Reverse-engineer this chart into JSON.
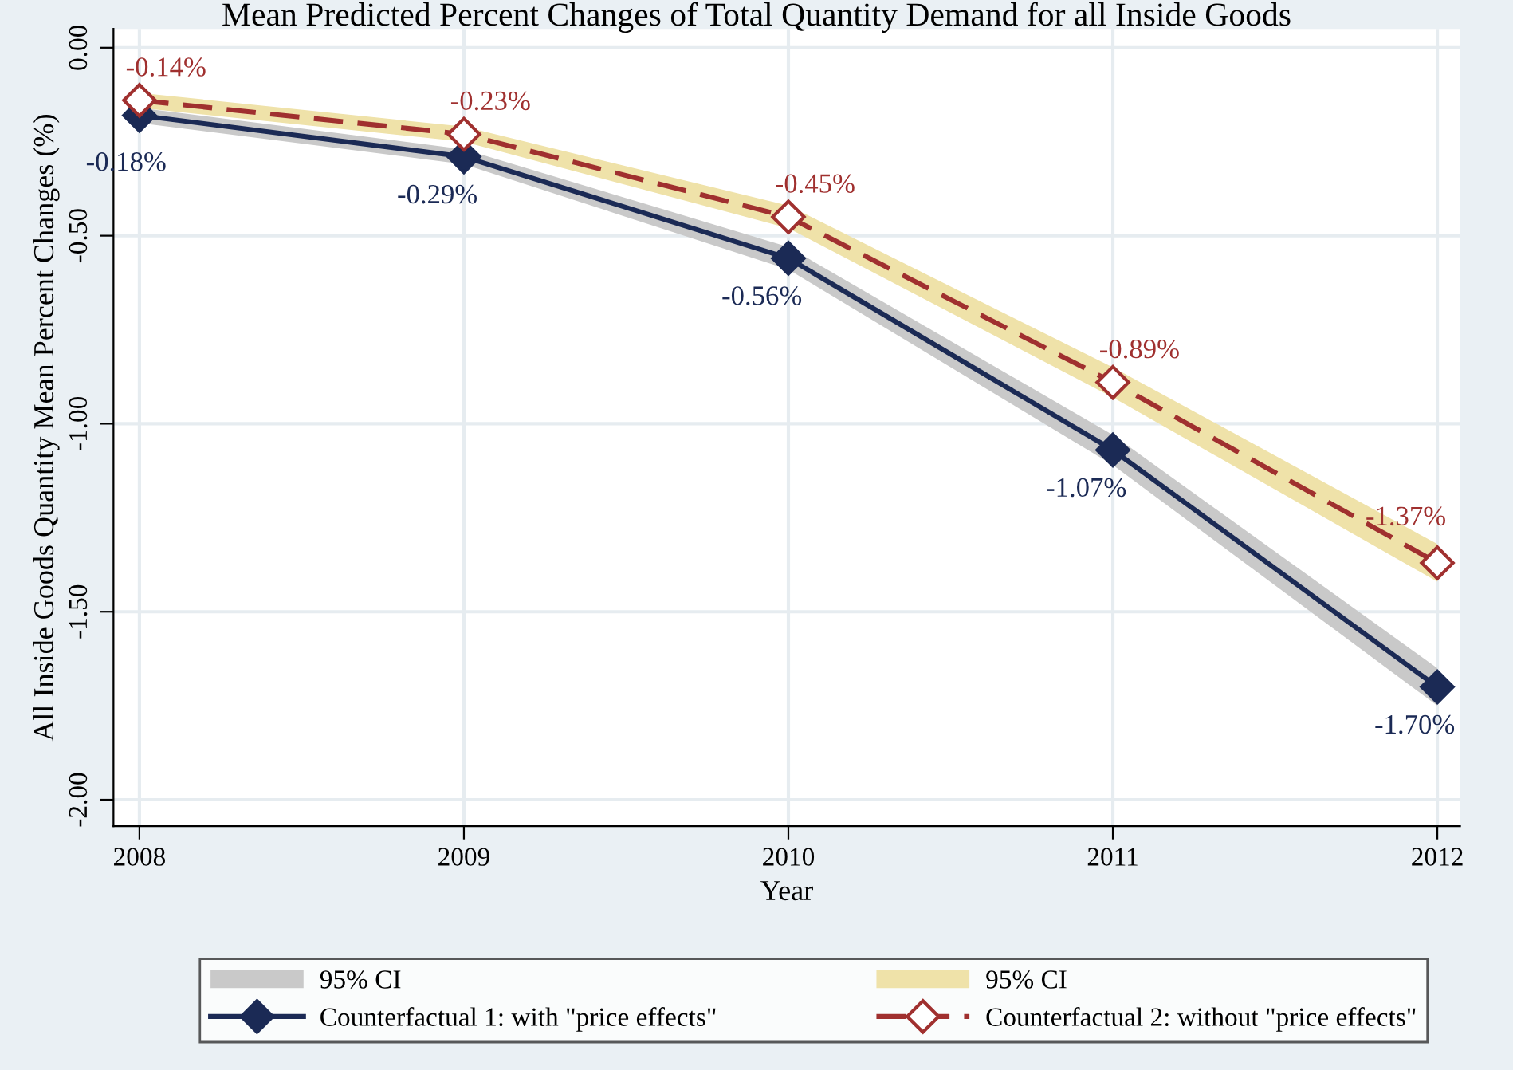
{
  "chart_data": {
    "type": "line",
    "title": "Mean Predicted Percent Changes of Total Quantity Demand for all Inside Goods",
    "xlabel": "Year",
    "ylabel": "All Inside Goods Quantity Mean Percent Changes (%)",
    "x": [
      2008,
      2009,
      2010,
      2011,
      2012
    ],
    "series": [
      {
        "name": "Counterfactual 1: with \"price effects\"",
        "color": "#1b2a55",
        "marker": "diamond",
        "line_style": "solid",
        "values": [
          -0.18,
          -0.29,
          -0.56,
          -1.07,
          -1.7
        ],
        "value_labels": [
          "-0.18%",
          "-0.29%",
          "-0.56%",
          "-1.07%",
          "-1.70%"
        ],
        "lower": [
          -0.2,
          -0.31,
          -0.59,
          -1.11,
          -1.75
        ],
        "upper": [
          -0.16,
          -0.27,
          -0.53,
          -1.03,
          -1.65
        ]
      },
      {
        "name": "Counterfactual 2: without \"price effects\"",
        "color": "#a0302f",
        "marker": "diamond",
        "line_style": "dashed",
        "values": [
          -0.14,
          -0.23,
          -0.45,
          -0.89,
          -1.37
        ],
        "value_labels": [
          "-0.14%",
          "-0.23%",
          "-0.45%",
          "-0.89%",
          "-1.37%"
        ],
        "lower": [
          -0.16,
          -0.25,
          -0.48,
          -0.93,
          -1.42
        ],
        "upper": [
          -0.12,
          -0.21,
          -0.42,
          -0.85,
          -1.32
        ]
      }
    ],
    "annotations": [
      "95% CI",
      "95% CI"
    ],
    "xlim": [
      2007.92,
      2012.07
    ],
    "ylim": [
      -2.07,
      0.05
    ],
    "xticks": [
      2008,
      2009,
      2010,
      2011,
      2012
    ],
    "yticks": [
      {
        "value": 0,
        "label": "0.00"
      },
      {
        "value": -0.5,
        "label": "-0.50"
      },
      {
        "value": -1,
        "label": "-1.00"
      },
      {
        "value": -1.5,
        "label": "-1.50"
      },
      {
        "value": -2,
        "label": "-2.00"
      }
    ],
    "grid": true,
    "legend": "bottom"
  }
}
